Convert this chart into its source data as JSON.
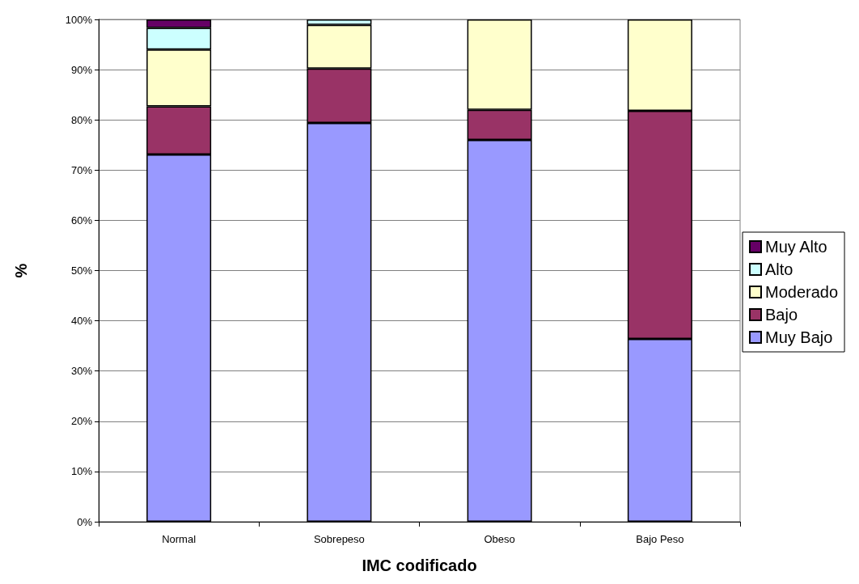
{
  "chart_data": {
    "type": "bar",
    "stacked": true,
    "xlabel": "IMC codificado",
    "ylabel": "%",
    "categories": [
      "Normal",
      "Sobrepeso",
      "Obeso",
      "Bajo Peso"
    ],
    "series": [
      {
        "name": "Muy Bajo",
        "color": "#9999ff",
        "values": [
          73.1,
          79.4,
          76.0,
          36.4
        ]
      },
      {
        "name": "Bajo",
        "color": "#993366",
        "values": [
          9.6,
          10.8,
          6.0,
          45.4
        ]
      },
      {
        "name": "Moderado",
        "color": "#ffffcc",
        "values": [
          11.3,
          8.7,
          18.0,
          18.2
        ]
      },
      {
        "name": "Alto",
        "color": "#ccffff",
        "values": [
          4.3,
          1.1,
          null,
          null
        ]
      },
      {
        "name": "Muy Alto",
        "color": "#660066",
        "values": [
          1.7,
          null,
          null,
          null
        ]
      }
    ],
    "ylim": [
      0,
      100
    ],
    "yticks": [
      {
        "value": 0,
        "label": "0%"
      },
      {
        "value": 10,
        "label": "10%"
      },
      {
        "value": 20,
        "label": "20%"
      },
      {
        "value": 30,
        "label": "30%"
      },
      {
        "value": 40,
        "label": "40%"
      },
      {
        "value": 50,
        "label": "50%"
      },
      {
        "value": 60,
        "label": "60%"
      },
      {
        "value": 70,
        "label": "70%"
      },
      {
        "value": 80,
        "label": "80%"
      },
      {
        "value": 90,
        "label": "90%"
      },
      {
        "value": 100,
        "label": "100%"
      }
    ],
    "grid": "y",
    "legend": "right"
  }
}
